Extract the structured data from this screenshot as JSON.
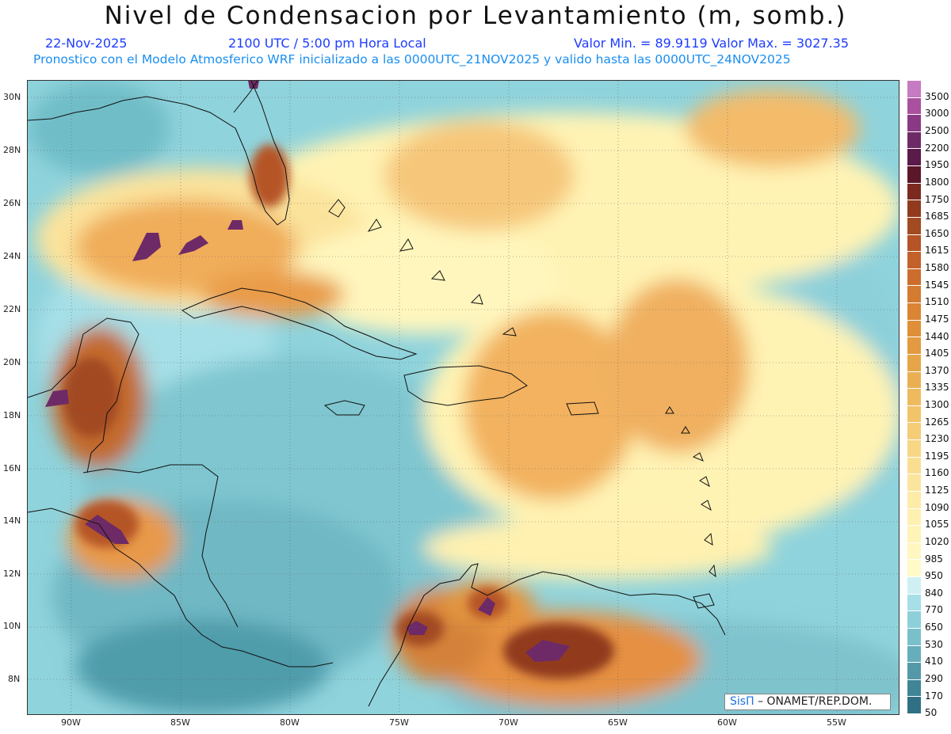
{
  "header": {
    "title": "Nivel de Condensacion por Levantamiento (m, somb.)",
    "date": "22-Nov-2025",
    "time": "2100 UTC / 5:00 pm Hora Local",
    "minmax": "Valor Min. = 89.9119   Valor Max. = 3027.35",
    "model": "Pronostico con el Modelo Atmosferico WRF inicializado a las 0000UTC_21NOV2025 y valido hasta las  0000UTC_24NOV2025"
  },
  "axes": {
    "lat_labels": [
      "30N",
      "28N",
      "26N",
      "24N",
      "22N",
      "20N",
      "18N",
      "16N",
      "14N",
      "12N",
      "10N",
      "8N"
    ],
    "lon_labels": [
      "90W",
      "85W",
      "80W",
      "75W",
      "70W",
      "65W",
      "60W",
      "55W"
    ]
  },
  "legend": {
    "levels": [
      "3500",
      "3000",
      "2500",
      "2200",
      "1950",
      "1800",
      "1750",
      "1685",
      "1650",
      "1615",
      "1580",
      "1545",
      "1510",
      "1475",
      "1440",
      "1405",
      "1370",
      "1335",
      "1300",
      "1265",
      "1230",
      "1195",
      "1160",
      "1125",
      "1090",
      "1055",
      "1020",
      "985",
      "950",
      "840",
      "770",
      "650",
      "530",
      "410",
      "290",
      "170",
      "50"
    ],
    "colors": [
      "#c67bc2",
      "#a9519e",
      "#8a3a85",
      "#6e2a66",
      "#5a1a4a",
      "#5b1629",
      "#7c2a1f",
      "#913a1e",
      "#a24a22",
      "#b55426",
      "#c2612a",
      "#cc6d2d",
      "#d47a31",
      "#da8434",
      "#e08f39",
      "#e39a40",
      "#e7a549",
      "#ebaf53",
      "#efba5e",
      "#f2c46a",
      "#f5cd77",
      "#f7d685",
      "#f9de92",
      "#fbe59e",
      "#fdeba8",
      "#fef0b0",
      "#fff4b8",
      "#fff7bf",
      "#fffac8",
      "#cfeff3",
      "#a6dfe7",
      "#8dd0da",
      "#7ac0cb",
      "#66aebb",
      "#5399a8",
      "#3f8596",
      "#2f7084"
    ]
  },
  "credit": {
    "brand": "SisΠ",
    "text": "– ONAMET/REP.DOM."
  }
}
